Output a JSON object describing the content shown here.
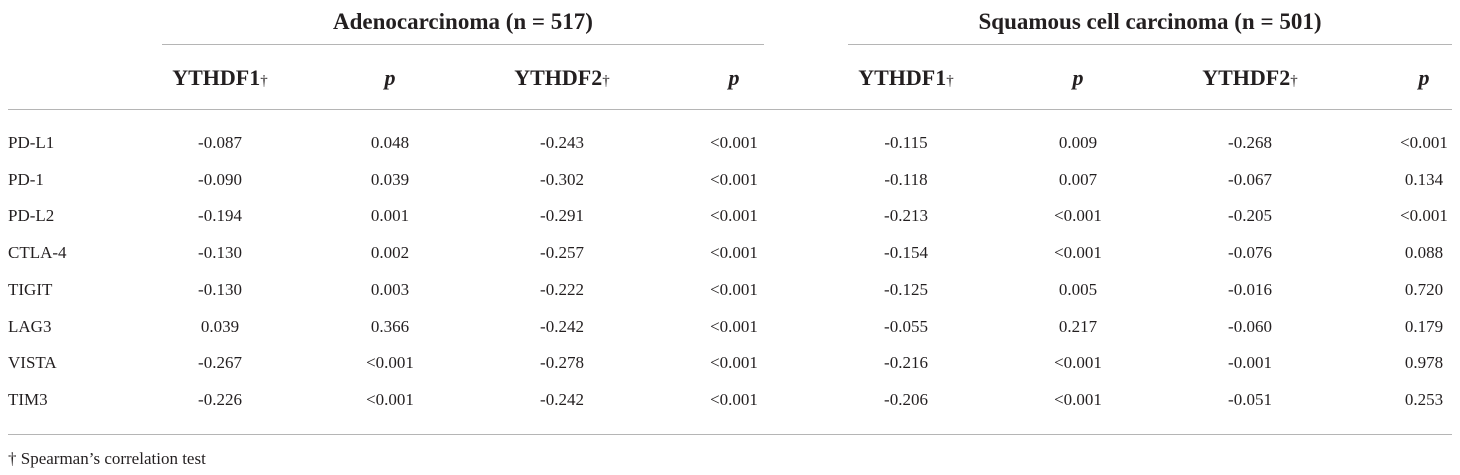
{
  "groups": [
    {
      "title": "Adenocarcinoma (n = 517)"
    },
    {
      "title": "Squamous cell carcinoma (n = 501)"
    }
  ],
  "columns": [
    {
      "label": "YTHDF1",
      "mark": "†"
    },
    {
      "label": "p",
      "mark": ""
    },
    {
      "label": "YTHDF2",
      "mark": "†"
    },
    {
      "label": "p",
      "mark": ""
    },
    {
      "label": "YTHDF1",
      "mark": "†"
    },
    {
      "label": "p",
      "mark": ""
    },
    {
      "label": "YTHDF2",
      "mark": "†"
    },
    {
      "label": "p",
      "mark": ""
    }
  ],
  "rows": [
    {
      "label": "PD-L1",
      "values": [
        "-0.087",
        "0.048",
        "-0.243",
        "<0.001",
        "-0.115",
        "0.009",
        "-0.268",
        "<0.001"
      ]
    },
    {
      "label": "PD-1",
      "values": [
        "-0.090",
        "0.039",
        "-0.302",
        "<0.001",
        "-0.118",
        "0.007",
        "-0.067",
        "0.134"
      ]
    },
    {
      "label": "PD-L2",
      "values": [
        "-0.194",
        "0.001",
        "-0.291",
        "<0.001",
        "-0.213",
        "<0.001",
        "-0.205",
        "<0.001"
      ]
    },
    {
      "label": "CTLA-4",
      "values": [
        "-0.130",
        "0.002",
        "-0.257",
        "<0.001",
        "-0.154",
        "<0.001",
        "-0.076",
        "0.088"
      ]
    },
    {
      "label": "TIGIT",
      "values": [
        "-0.130",
        "0.003",
        "-0.222",
        "<0.001",
        "-0.125",
        "0.005",
        "-0.016",
        "0.720"
      ]
    },
    {
      "label": "LAG3",
      "values": [
        "0.039",
        "0.366",
        "-0.242",
        "<0.001",
        "-0.055",
        "0.217",
        "-0.060",
        "0.179"
      ]
    },
    {
      "label": "VISTA",
      "values": [
        "-0.267",
        "<0.001",
        "-0.278",
        "<0.001",
        "-0.216",
        "<0.001",
        "-0.001",
        "0.978"
      ]
    },
    {
      "label": "TIM3",
      "values": [
        "-0.226",
        "<0.001",
        "-0.242",
        "<0.001",
        "-0.206",
        "<0.001",
        "-0.051",
        "0.253"
      ]
    }
  ],
  "footnote": "† Spearman’s correlation test"
}
